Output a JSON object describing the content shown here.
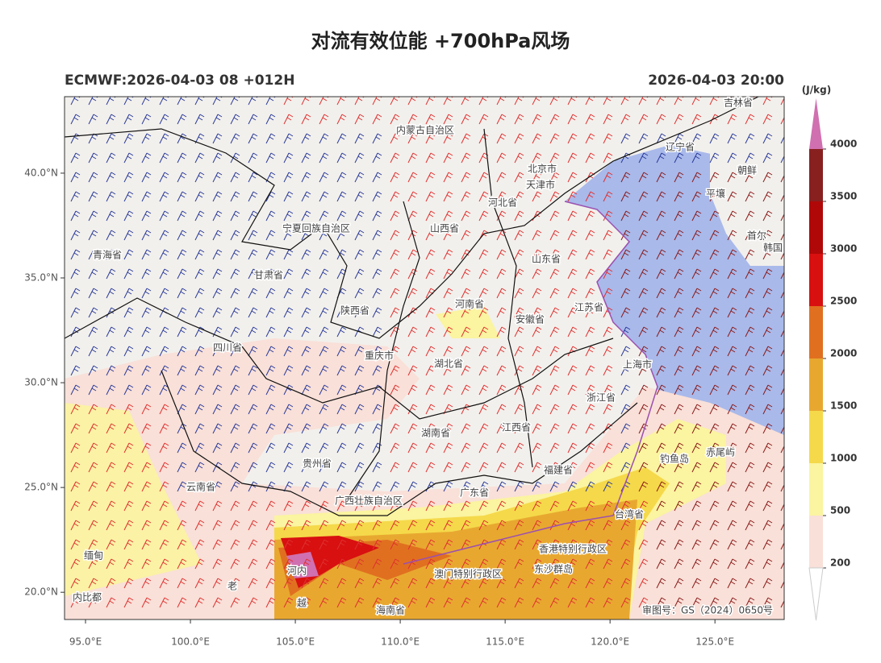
{
  "header": {
    "title": "对流有效位能 +700hPa风场",
    "model": "ECMWF:2026-04-03 08 +012H",
    "valid_time": "2026-04-03 20:00"
  },
  "map": {
    "xlim": [
      94.0,
      128.3
    ],
    "ylim": [
      18.7,
      43.65
    ],
    "xticks": [
      {
        "value": 95,
        "label": "95.0°E"
      },
      {
        "value": 100,
        "label": "100.0°E"
      },
      {
        "value": 105,
        "label": "105.0°E"
      },
      {
        "value": 110,
        "label": "110.0°E"
      },
      {
        "value": 115,
        "label": "115.0°E"
      },
      {
        "value": 120,
        "label": "120.0°E"
      },
      {
        "value": 125,
        "label": "125.0°E"
      }
    ],
    "yticks": [
      {
        "value": 20,
        "label": "20.0°N"
      },
      {
        "value": 25,
        "label": "25.0°N"
      },
      {
        "value": 30,
        "label": "30.0°N"
      },
      {
        "value": 35,
        "label": "35.0°N"
      },
      {
        "value": 40,
        "label": "40.0°N"
      }
    ],
    "places": [
      "内蒙古自治区",
      "吉林省",
      "辽宁省",
      "朝鲜",
      "北京市",
      "天津市",
      "河北省",
      "宁夏回族自治区",
      "山西省",
      "青海省",
      "甘肃省",
      "山东省",
      "韩国",
      "陕西省",
      "河南省",
      "江苏省",
      "安徽省",
      "四川省",
      "重庆市",
      "湖北省",
      "上海市",
      "浙江省",
      "江西省",
      "湖南省",
      "贵州省",
      "福建省",
      "钓鱼岛",
      "赤尾屿",
      "云南省",
      "广东省",
      "广西壮族自治区",
      "台湾省",
      "香港特别行政区",
      "澳门特别行政区",
      "东沙群岛",
      "缅甸",
      "老",
      "河内",
      "越",
      "海南省",
      "内比都",
      "平壤",
      "首尔"
    ],
    "review_number": "审图号：GS（2024）0650号"
  },
  "colorbar": {
    "unit": "(J/kg)",
    "levels": [
      200,
      500,
      1000,
      1500,
      2000,
      2500,
      3000,
      3500,
      4000
    ],
    "colors": [
      "#f9e0d8",
      "#fbf4a0",
      "#f5d94a",
      "#e8a830",
      "#e07020",
      "#d81010",
      "#b00808",
      "#882020",
      "#d070b0"
    ]
  }
}
